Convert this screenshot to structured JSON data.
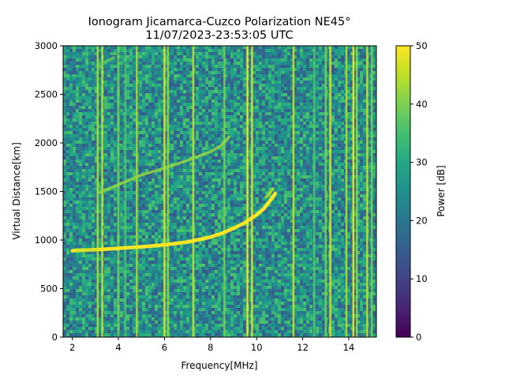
{
  "chart_data": {
    "type": "heatmap",
    "title": "Ionogram Jicamarca-Cuzco Polarization NE45°",
    "subtitle": "11/07/2023-23:53:05 UTC",
    "xlabel": "Frequency[MHz]",
    "ylabel": "Virtual Distance[km]",
    "xlim": [
      1.6,
      15.2
    ],
    "ylim": [
      0,
      3000
    ],
    "x_ticks": [
      2,
      4,
      6,
      8,
      10,
      12,
      14
    ],
    "y_ticks": [
      0,
      500,
      1000,
      1500,
      2000,
      2500,
      3000
    ],
    "colorbar": {
      "label": "Power [dB]",
      "range": [
        0,
        50
      ],
      "ticks": [
        0,
        10,
        20,
        30,
        40,
        50
      ],
      "colormap": "viridis"
    },
    "background_power_db": 25,
    "traces": [
      {
        "x": [
          2.0,
          3.0,
          4.0,
          5.0,
          6.0,
          7.0,
          8.0,
          8.5,
          9.0,
          9.5,
          10.0,
          10.3,
          10.5,
          10.7,
          10.8
        ],
        "y": [
          890,
          900,
          915,
          930,
          950,
          980,
          1030,
          1070,
          1120,
          1180,
          1260,
          1320,
          1380,
          1440,
          1480
        ],
        "power_db": 50
      },
      {
        "x": [
          3.2,
          4.0,
          5.0,
          6.0,
          7.0,
          8.0,
          8.5,
          8.8
        ],
        "y": [
          1490,
          1570,
          1670,
          1740,
          1820,
          1910,
          1980,
          2060
        ],
        "power_db": 42
      },
      {
        "x": [
          10.4,
          10.6,
          10.7
        ],
        "y": [
          1440,
          1490,
          1530
        ],
        "power_db": 44
      },
      {
        "x": [
          2.2,
          2.7,
          3.1
        ],
        "y": [
          890,
          895,
          898
        ],
        "power_db": 46
      },
      {
        "x": [
          3.1,
          3.4,
          3.8
        ],
        "y": [
          2760,
          2830,
          2880
        ],
        "power_db": 38
      }
    ],
    "interference_lines": [
      {
        "x": 3.1,
        "power_db": 44
      },
      {
        "x": 3.3,
        "power_db": 46
      },
      {
        "x": 4.0,
        "power_db": 40
      },
      {
        "x": 4.3,
        "power_db": 36
      },
      {
        "x": 4.8,
        "power_db": 44
      },
      {
        "x": 6.0,
        "power_db": 48
      },
      {
        "x": 6.15,
        "power_db": 42
      },
      {
        "x": 7.25,
        "power_db": 46
      },
      {
        "x": 8.6,
        "power_db": 40
      },
      {
        "x": 9.6,
        "power_db": 50
      },
      {
        "x": 9.8,
        "power_db": 48
      },
      {
        "x": 11.6,
        "power_db": 46
      },
      {
        "x": 12.5,
        "power_db": 36
      },
      {
        "x": 13.0,
        "power_db": 40
      },
      {
        "x": 13.2,
        "power_db": 48
      },
      {
        "x": 13.9,
        "power_db": 44
      },
      {
        "x": 14.2,
        "power_db": 50
      },
      {
        "x": 14.35,
        "power_db": 42
      },
      {
        "x": 14.8,
        "power_db": 46
      },
      {
        "x": 15.0,
        "power_db": 40
      }
    ]
  }
}
